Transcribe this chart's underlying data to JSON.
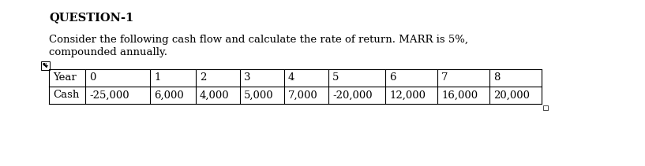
{
  "title": "QUESTION-1",
  "body_line1": "Consider the following cash flow and calculate the rate of return. MARR is 5%,",
  "body_line2": "compounded annually.",
  "years": [
    "Year",
    "0",
    "1",
    "2",
    "3",
    "4",
    "5",
    "6",
    "7",
    "8"
  ],
  "cash": [
    "Cash",
    "-25,000",
    "6,000",
    "4,000",
    "5,000",
    "7,000",
    "-20,000",
    "12,000",
    "16,000",
    "20,000"
  ],
  "bg_color": "#ffffff",
  "text_color": "#000000",
  "fig_width": 8.17,
  "fig_height": 2.11,
  "dpi": 100
}
